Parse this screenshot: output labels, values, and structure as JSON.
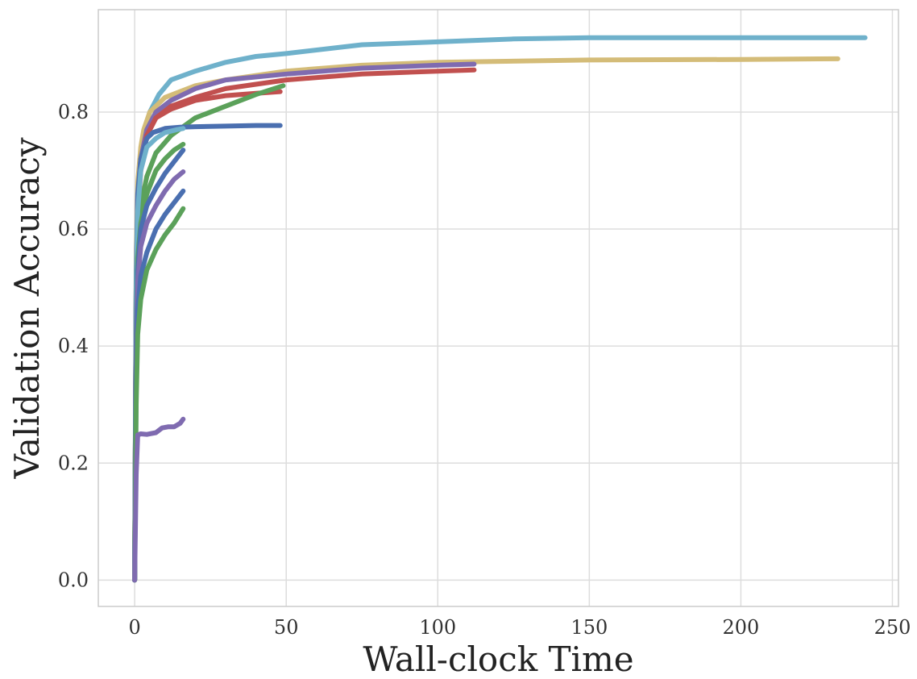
{
  "chart_data": {
    "type": "line",
    "title": "",
    "xlabel": "Wall-clock Time",
    "ylabel": "Validation Accuracy",
    "xlim": [
      -12,
      252
    ],
    "ylim": [
      -0.045,
      0.975
    ],
    "xticks": [
      0,
      50,
      100,
      150,
      200,
      250
    ],
    "yticks": [
      0.0,
      0.2,
      0.4,
      0.6,
      0.8
    ],
    "xtick_labels": [
      "0",
      "50",
      "100",
      "150",
      "200",
      "250"
    ],
    "ytick_labels": [
      "0.0",
      "0.2",
      "0.4",
      "0.6",
      "0.8"
    ],
    "grid": true,
    "legend": "none",
    "series": [
      {
        "color": "#6FB1CB",
        "points": [
          [
            0,
            0
          ],
          [
            0.5,
            0.5
          ],
          [
            1,
            0.65
          ],
          [
            2,
            0.72
          ],
          [
            3,
            0.76
          ],
          [
            5,
            0.8
          ],
          [
            8,
            0.83
          ],
          [
            12,
            0.855
          ],
          [
            20,
            0.87
          ],
          [
            30,
            0.885
          ],
          [
            40,
            0.895
          ],
          [
            50,
            0.9
          ],
          [
            75,
            0.915
          ],
          [
            100,
            0.92
          ],
          [
            125,
            0.925
          ],
          [
            150,
            0.927
          ],
          [
            200,
            0.927
          ],
          [
            241,
            0.927
          ]
        ]
      },
      {
        "color": "#D4BC78",
        "points": [
          [
            0,
            0
          ],
          [
            0.5,
            0.55
          ],
          [
            1,
            0.68
          ],
          [
            2,
            0.74
          ],
          [
            3,
            0.77
          ],
          [
            5,
            0.8
          ],
          [
            10,
            0.825
          ],
          [
            20,
            0.845
          ],
          [
            30,
            0.855
          ],
          [
            50,
            0.87
          ],
          [
            75,
            0.88
          ],
          [
            100,
            0.885
          ],
          [
            150,
            0.889
          ],
          [
            200,
            0.89
          ],
          [
            232,
            0.891
          ]
        ]
      },
      {
        "color": "#7F6BB0",
        "points": [
          [
            0,
            0
          ],
          [
            0.5,
            0.5
          ],
          [
            1,
            0.65
          ],
          [
            2,
            0.72
          ],
          [
            4,
            0.77
          ],
          [
            7,
            0.8
          ],
          [
            12,
            0.82
          ],
          [
            20,
            0.84
          ],
          [
            30,
            0.855
          ],
          [
            50,
            0.865
          ],
          [
            75,
            0.875
          ],
          [
            100,
            0.88
          ],
          [
            112,
            0.882
          ]
        ]
      },
      {
        "color": "#C1504F",
        "points": [
          [
            0,
            0
          ],
          [
            0.5,
            0.48
          ],
          [
            1,
            0.62
          ],
          [
            2,
            0.7
          ],
          [
            4,
            0.76
          ],
          [
            7,
            0.79
          ],
          [
            12,
            0.81
          ],
          [
            20,
            0.825
          ],
          [
            30,
            0.84
          ],
          [
            50,
            0.855
          ],
          [
            75,
            0.865
          ],
          [
            100,
            0.87
          ],
          [
            112,
            0.872
          ]
        ]
      },
      {
        "color": "#C1504F",
        "points": [
          [
            0,
            0
          ],
          [
            0.5,
            0.5
          ],
          [
            1,
            0.64
          ],
          [
            2,
            0.71
          ],
          [
            4,
            0.76
          ],
          [
            7,
            0.79
          ],
          [
            12,
            0.805
          ],
          [
            20,
            0.82
          ],
          [
            30,
            0.828
          ],
          [
            40,
            0.832
          ],
          [
            48,
            0.835
          ]
        ]
      },
      {
        "color": "#5BA15A",
        "points": [
          [
            0,
            0
          ],
          [
            0.5,
            0.45
          ],
          [
            1,
            0.58
          ],
          [
            2,
            0.64
          ],
          [
            4,
            0.69
          ],
          [
            7,
            0.73
          ],
          [
            12,
            0.76
          ],
          [
            20,
            0.79
          ],
          [
            30,
            0.81
          ],
          [
            40,
            0.83
          ],
          [
            49,
            0.845
          ]
        ]
      },
      {
        "color": "#4A6FB0",
        "points": [
          [
            0,
            0
          ],
          [
            0.5,
            0.52
          ],
          [
            1,
            0.66
          ],
          [
            2,
            0.72
          ],
          [
            4,
            0.755
          ],
          [
            6,
            0.765
          ],
          [
            10,
            0.772
          ],
          [
            15,
            0.774
          ],
          [
            20,
            0.775
          ],
          [
            30,
            0.776
          ],
          [
            40,
            0.777
          ],
          [
            48,
            0.777
          ]
        ]
      },
      {
        "color": "#6FB1CB",
        "points": [
          [
            0,
            0
          ],
          [
            0.5,
            0.5
          ],
          [
            1,
            0.63
          ],
          [
            2,
            0.7
          ],
          [
            4,
            0.74
          ],
          [
            7,
            0.755
          ],
          [
            10,
            0.765
          ],
          [
            14,
            0.77
          ],
          [
            16,
            0.772
          ]
        ]
      },
      {
        "color": "#5BA15A",
        "points": [
          [
            0,
            0
          ],
          [
            0.5,
            0.42
          ],
          [
            1,
            0.55
          ],
          [
            2,
            0.61
          ],
          [
            4,
            0.66
          ],
          [
            7,
            0.7
          ],
          [
            10,
            0.72
          ],
          [
            13,
            0.735
          ],
          [
            16,
            0.745
          ]
        ]
      },
      {
        "color": "#4A6FB0",
        "points": [
          [
            0,
            0
          ],
          [
            0.5,
            0.4
          ],
          [
            1,
            0.53
          ],
          [
            2,
            0.6
          ],
          [
            4,
            0.64
          ],
          [
            7,
            0.67
          ],
          [
            10,
            0.695
          ],
          [
            13,
            0.715
          ],
          [
            16,
            0.735
          ]
        ]
      },
      {
        "color": "#7F6BB0",
        "points": [
          [
            0,
            0
          ],
          [
            0.5,
            0.38
          ],
          [
            1,
            0.51
          ],
          [
            2,
            0.57
          ],
          [
            4,
            0.61
          ],
          [
            7,
            0.64
          ],
          [
            10,
            0.665
          ],
          [
            13,
            0.685
          ],
          [
            16,
            0.698
          ]
        ]
      },
      {
        "color": "#4A6FB0",
        "points": [
          [
            0,
            0
          ],
          [
            0.5,
            0.34
          ],
          [
            1,
            0.46
          ],
          [
            2,
            0.52
          ],
          [
            4,
            0.56
          ],
          [
            7,
            0.6
          ],
          [
            10,
            0.625
          ],
          [
            13,
            0.645
          ],
          [
            16,
            0.665
          ]
        ]
      },
      {
        "color": "#5BA15A",
        "points": [
          [
            0,
            0
          ],
          [
            0.5,
            0.3
          ],
          [
            1,
            0.42
          ],
          [
            2,
            0.48
          ],
          [
            4,
            0.53
          ],
          [
            7,
            0.565
          ],
          [
            10,
            0.59
          ],
          [
            13,
            0.61
          ],
          [
            16,
            0.635
          ]
        ]
      },
      {
        "color": "#7F6BB0",
        "points": [
          [
            0,
            0
          ],
          [
            0.5,
            0.18
          ],
          [
            1,
            0.248
          ],
          [
            2,
            0.25
          ],
          [
            4,
            0.249
          ],
          [
            7,
            0.252
          ],
          [
            9,
            0.26
          ],
          [
            11,
            0.262
          ],
          [
            13,
            0.262
          ],
          [
            15,
            0.268
          ],
          [
            16,
            0.275
          ]
        ]
      }
    ]
  }
}
